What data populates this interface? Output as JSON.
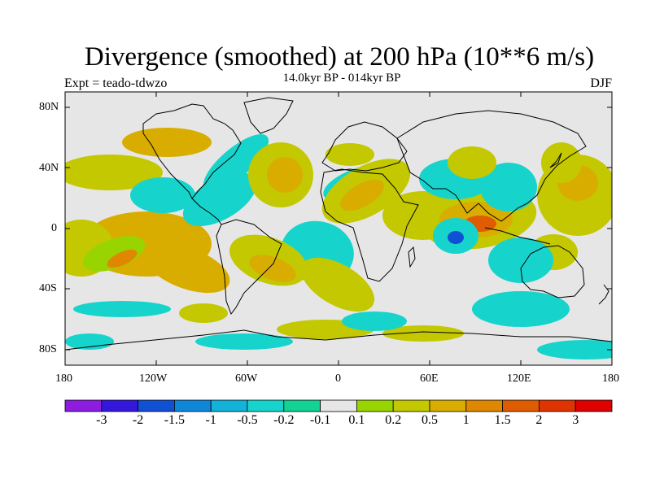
{
  "title": "Divergence (smoothed) at 200 hPa (10**6 m/s)",
  "subtitle": "14.0kyr BP - 014kyr BP",
  "experiment": "Expt = teado-tdwzo",
  "season": "DJF",
  "lat_labels": [
    "80N",
    "40N",
    "0",
    "40S",
    "80S"
  ],
  "lon_labels": [
    "180",
    "120W",
    "60W",
    "0",
    "60E",
    "120E",
    "180"
  ],
  "colorbar": {
    "colors": [
      "#8c1ce0",
      "#3417dd",
      "#1050d4",
      "#0e87d8",
      "#12b2d9",
      "#16d4cc",
      "#12d393",
      "#e6e6e6",
      "#98d500",
      "#c3c800",
      "#d8ad00",
      "#df8700",
      "#df5c00",
      "#df3300",
      "#e00000"
    ],
    "labels": [
      "-3",
      "-2",
      "-1.5",
      "-1",
      "-0.5",
      "-0.2",
      "-0.1",
      "0.1",
      "0.2",
      "0.5",
      "1",
      "1.5",
      "2",
      "3"
    ]
  },
  "colors": {
    "background_field": "#e6e6e6",
    "coast": "#000000"
  }
}
